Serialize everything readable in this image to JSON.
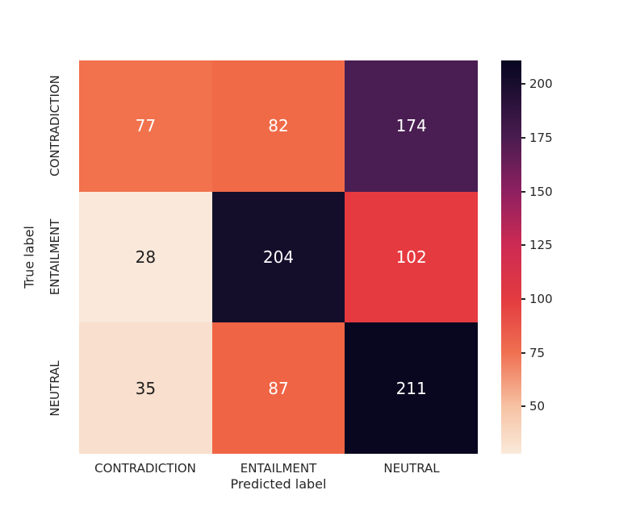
{
  "chart_data": {
    "type": "heatmap",
    "title": "",
    "xlabel": "Predicted label",
    "ylabel": "True label",
    "x_categories": [
      "CONTRADICTION",
      "ENTAILMENT",
      "NEUTRAL"
    ],
    "y_categories": [
      "CONTRADICTION",
      "ENTAILMENT",
      "NEUTRAL"
    ],
    "matrix": [
      [
        77,
        82,
        174
      ],
      [
        28,
        204,
        102
      ],
      [
        35,
        87,
        211
      ]
    ],
    "vmin": 28,
    "vmax": 211,
    "colormap": "rocket_r",
    "grid": false,
    "legend_position": "right-colorbar",
    "text_color": "#262626",
    "colorbar": {
      "ticks": [
        200,
        175,
        150,
        125,
        100,
        75,
        50
      ],
      "gradient": [
        {
          "value": 28,
          "color": "#faeadb"
        },
        {
          "value": 50,
          "color": "#f6c2a3"
        },
        {
          "value": 75,
          "color": "#ef7051"
        },
        {
          "value": 100,
          "color": "#e33b40"
        },
        {
          "value": 125,
          "color": "#cd2a53"
        },
        {
          "value": 150,
          "color": "#8e2060"
        },
        {
          "value": 175,
          "color": "#4a1c50"
        },
        {
          "value": 200,
          "color": "#190d2e"
        },
        {
          "value": 211,
          "color": "#070521"
        }
      ]
    },
    "cell_colors": [
      [
        "#f1724d",
        "#f06a47",
        "#4a1e52"
      ],
      [
        "#fae8da",
        "#140e2b",
        "#e53a40"
      ],
      [
        "#f9dfcd",
        "#ef6444",
        "#09071f"
      ]
    ],
    "annotation_colors": [
      [
        "#ffffff",
        "#ffffff",
        "#ffffff"
      ],
      [
        "#1f1f1f",
        "#ffffff",
        "#ffffff"
      ],
      [
        "#1f1f1f",
        "#ffffff",
        "#ffffff"
      ]
    ]
  }
}
